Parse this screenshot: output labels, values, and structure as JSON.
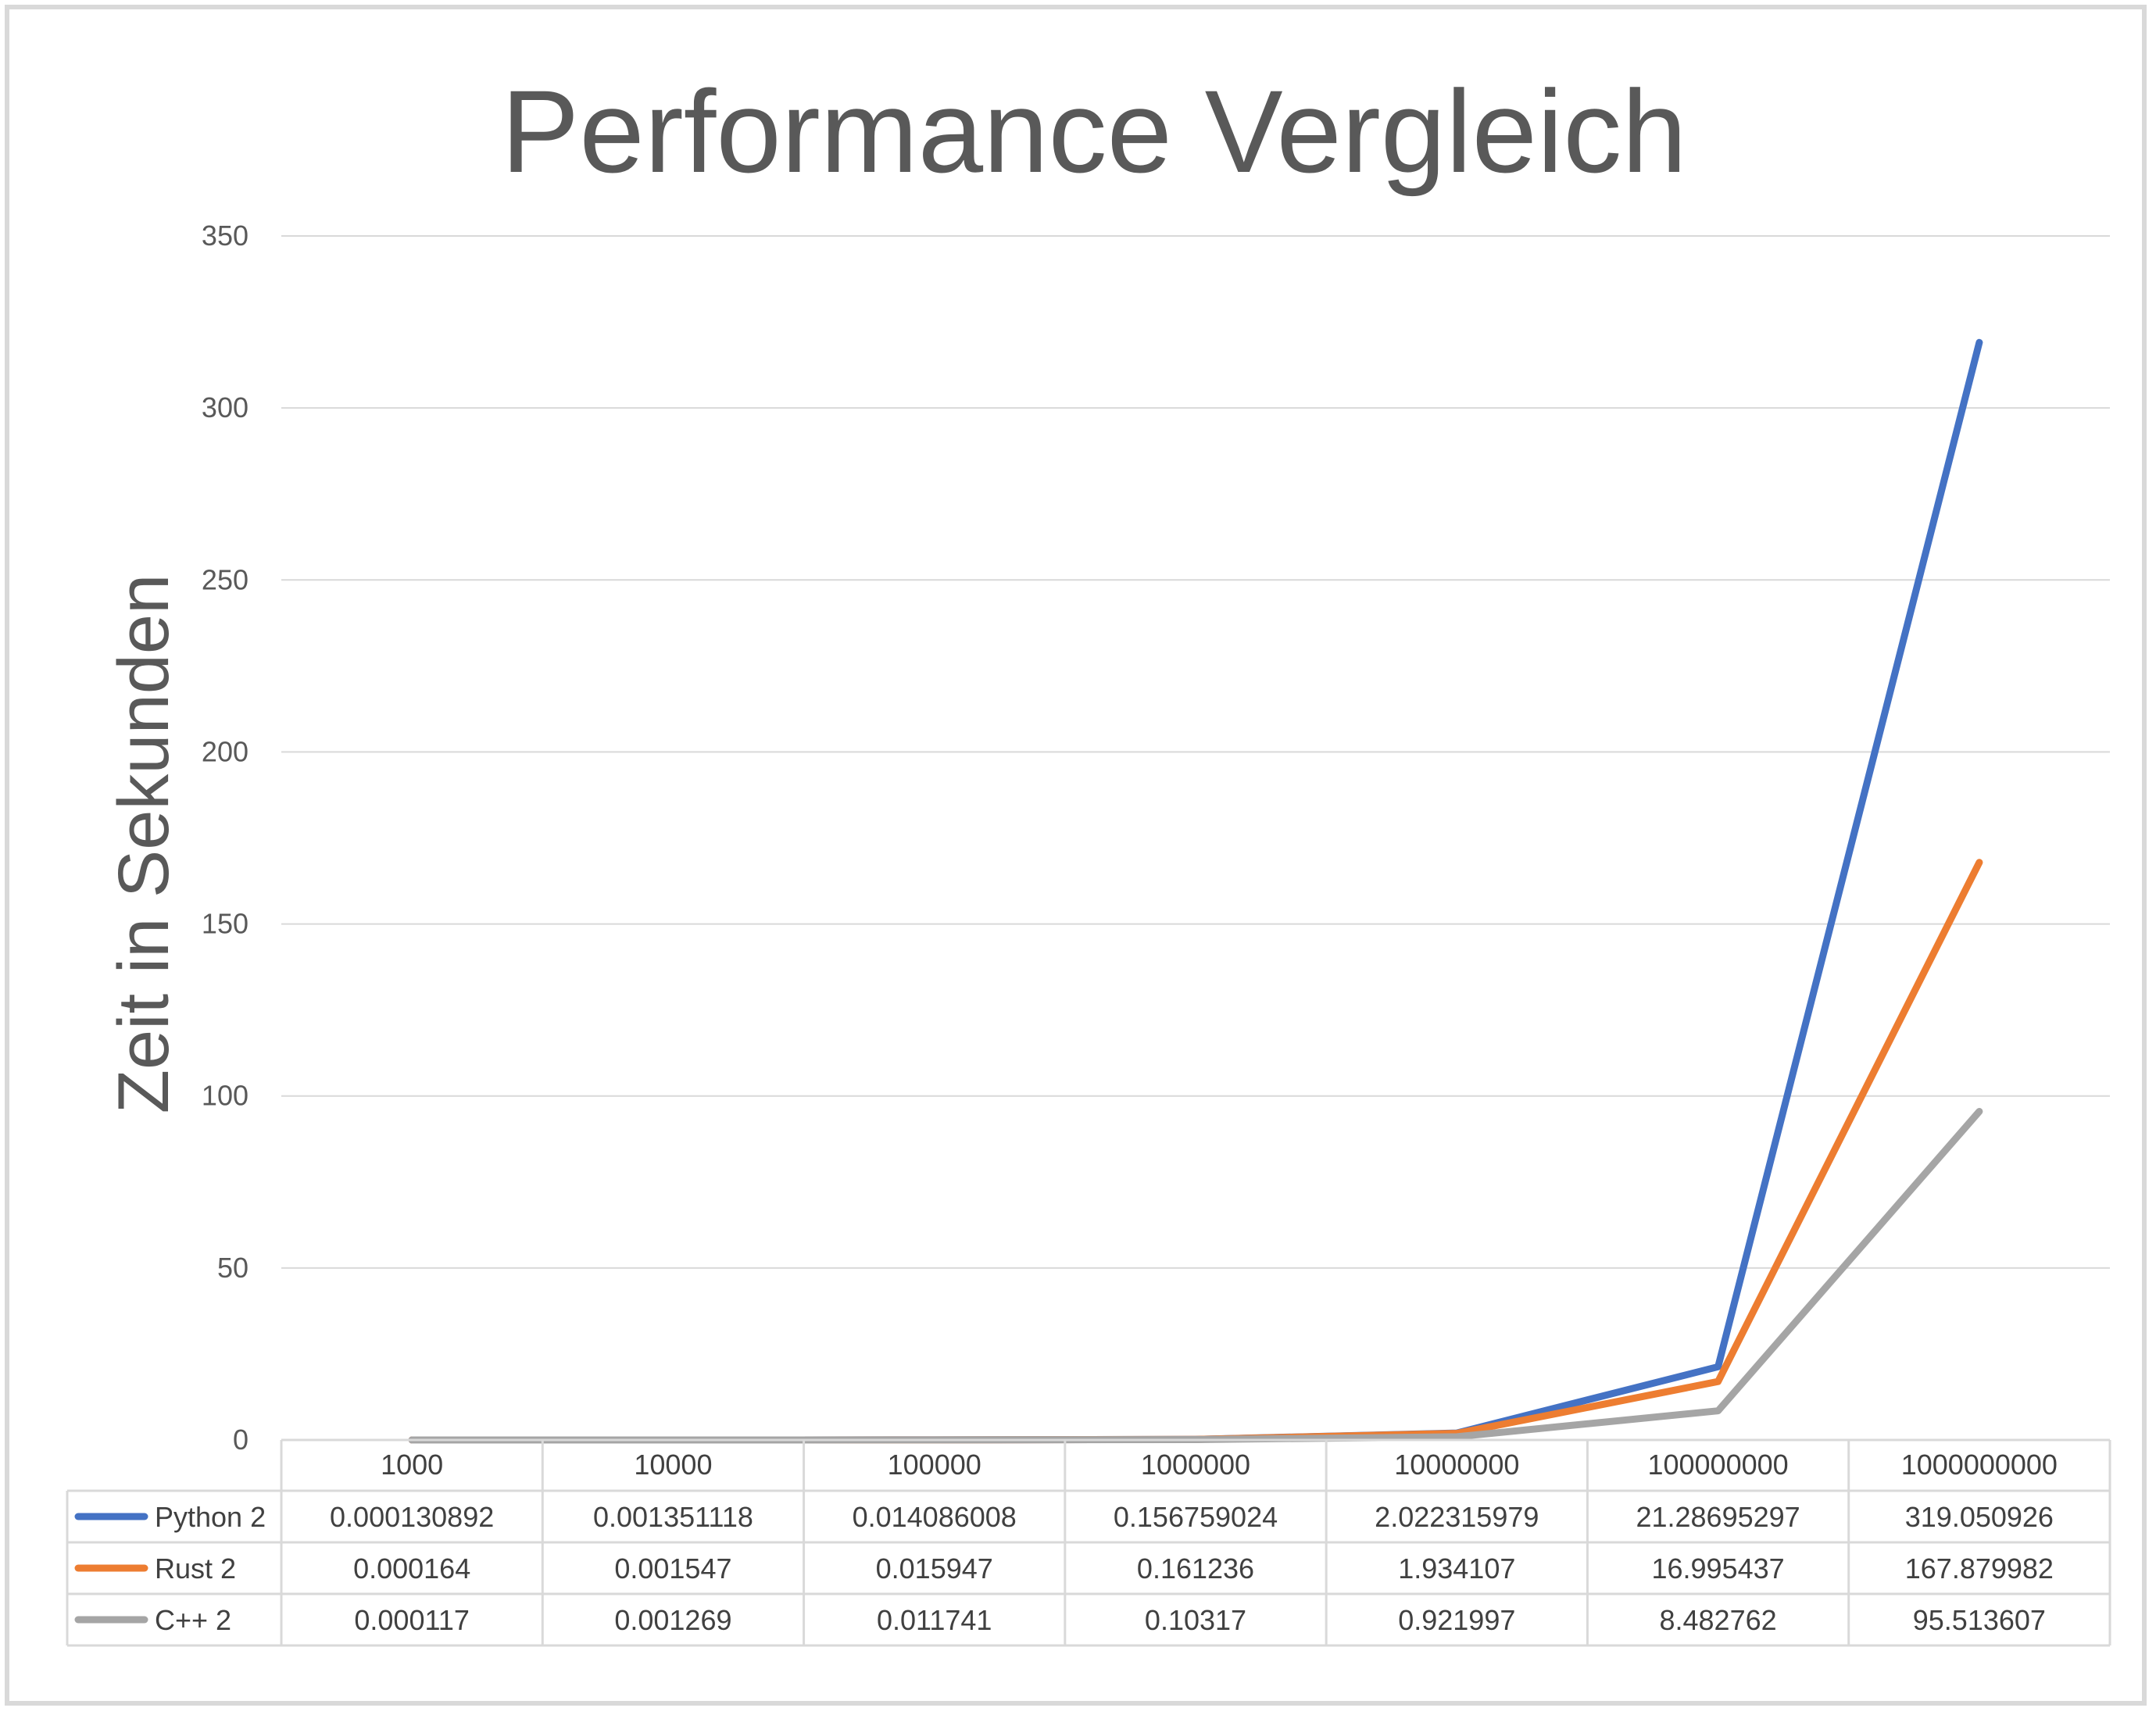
{
  "chart_data": {
    "type": "line",
    "title": "Performance Vergleich",
    "ylabel": "Zeit in Sekunden",
    "xlabel": "",
    "ylim": [
      0,
      350
    ],
    "yticks": [
      0,
      50,
      100,
      150,
      200,
      250,
      300,
      350
    ],
    "grid": true,
    "legend": "data table",
    "categories": [
      "1000",
      "10000",
      "100000",
      "1000000",
      "10000000",
      "100000000",
      "1000000000"
    ],
    "series": [
      {
        "name": "Python 2",
        "color": "#4472c4",
        "values": [
          0.000130892,
          0.001351118,
          0.014086008,
          0.156759024,
          2.022315979,
          21.28695297,
          319.050926
        ],
        "labels": [
          "0.000130892",
          "0.001351118",
          "0.014086008",
          "0.156759024",
          "2.022315979",
          "21.28695297",
          "319.050926"
        ]
      },
      {
        "name": "Rust 2",
        "color": "#ed7d31",
        "values": [
          0.000164,
          0.001547,
          0.015947,
          0.161236,
          1.934107,
          16.995437,
          167.879982
        ],
        "labels": [
          "0.000164",
          "0.001547",
          "0.015947",
          "0.161236",
          "1.934107",
          "16.995437",
          "167.879982"
        ]
      },
      {
        "name": "C++ 2",
        "color": "#a5a5a5",
        "values": [
          0.000117,
          0.001269,
          0.011741,
          0.10317,
          0.921997,
          8.482762,
          95.513607
        ],
        "labels": [
          "0.000117",
          "0.001269",
          "0.011741",
          "0.10317",
          "0.921997",
          "8.482762",
          "95.513607"
        ]
      }
    ]
  }
}
